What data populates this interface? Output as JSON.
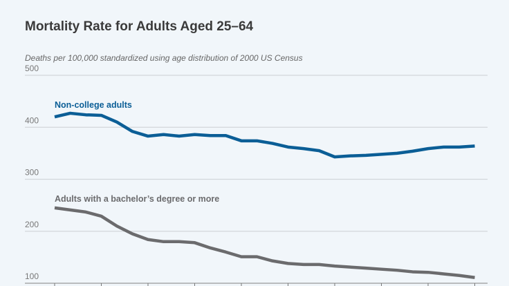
{
  "chart_data": {
    "type": "line",
    "title": "Mortality Rate for Adults Aged 25–64",
    "subtitle": "Deaths per 100,000 standardized using age distribution of 2000 US Census",
    "ylim": [
      100,
      500
    ],
    "yticks": [
      500,
      400,
      300,
      200,
      100
    ],
    "grid": true,
    "series": [
      {
        "name": "Non-college adults",
        "color": "#0b5e96",
        "values": [
          420,
          427,
          424,
          423,
          410,
          392,
          383,
          386,
          383,
          386,
          384,
          384,
          374,
          374,
          369,
          362,
          359,
          355,
          343,
          345,
          346,
          348,
          350,
          354,
          359,
          362,
          362,
          364
        ]
      },
      {
        "name": "Adults with a bachelor’s degree or more",
        "color": "#6b6b6d",
        "values": [
          245,
          241,
          237,
          229,
          210,
          195,
          184,
          180,
          180,
          178,
          168,
          160,
          151,
          151,
          143,
          138,
          136,
          136,
          133,
          131,
          129,
          127,
          125,
          122,
          121,
          118,
          115,
          111
        ]
      }
    ]
  }
}
